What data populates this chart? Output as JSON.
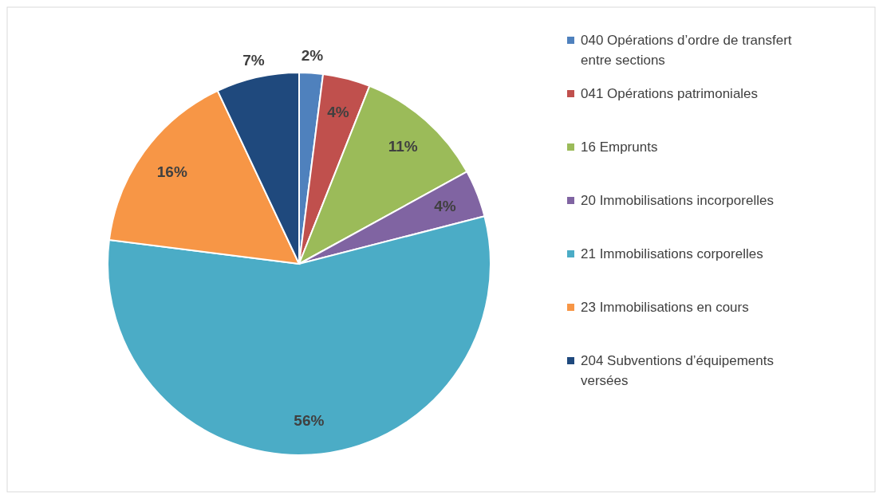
{
  "chart_data": {
    "type": "pie",
    "categories": [
      "040 Opérations d’ordre de transfert entre sections",
      "041 Opérations patrimoniales",
      "16 Emprunts",
      "20 Immobilisations incorporelles",
      "21 Immobilisations corporelles",
      "23 Immobilisations en cours",
      "204 Subventions d’équipements versées"
    ],
    "values": [
      2,
      4,
      11,
      4,
      56,
      16,
      7
    ],
    "colors": [
      "#4f81bd",
      "#c0504d",
      "#9bbb59",
      "#8064a2",
      "#4bacc6",
      "#f79646",
      "#1f497d"
    ],
    "value_labels": [
      "2%",
      "4%",
      "11%",
      "4%",
      "56%",
      "16%",
      "7%"
    ],
    "legend": "right"
  }
}
